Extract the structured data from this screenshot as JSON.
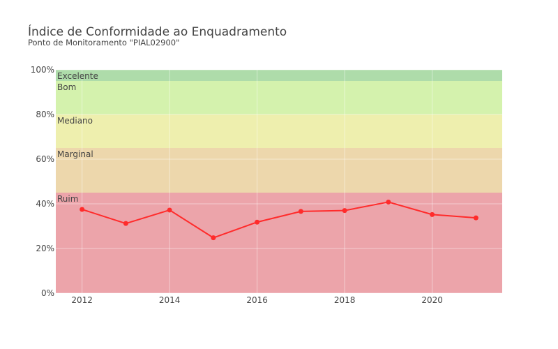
{
  "chart_data": {
    "type": "line",
    "title": "Índice de Conformidade ao Enquadramento",
    "subtitle": "Ponto de Monitoramento \"PIAL02900\"",
    "x": [
      2012,
      2013,
      2014,
      2015,
      2016,
      2017,
      2018,
      2019,
      2020,
      2021
    ],
    "series": [
      {
        "values": [
          37.5,
          31.2,
          37.2,
          24.8,
          31.8,
          36.6,
          37.0,
          40.8,
          35.2,
          33.7
        ],
        "color": "#ff2b2b"
      }
    ],
    "xlim": [
      2011.4,
      2021.6
    ],
    "ylim": [
      0,
      100
    ],
    "x_ticks": [
      2012,
      2014,
      2016,
      2018,
      2020
    ],
    "x_tick_labels": [
      "2012",
      "2014",
      "2016",
      "2018",
      "2020"
    ],
    "y_ticks": [
      0,
      20,
      40,
      60,
      80,
      100
    ],
    "y_tick_labels": [
      "0%",
      "20%",
      "40%",
      "60%",
      "80%",
      "100%"
    ],
    "grid": true,
    "bands": [
      {
        "label": "Ruim",
        "from": 0,
        "to": 45,
        "color": "#eca4aa"
      },
      {
        "label": "Marginal",
        "from": 45,
        "to": 65,
        "color": "#edd7ac"
      },
      {
        "label": "Mediano",
        "from": 65,
        "to": 80,
        "color": "#eeefae"
      },
      {
        "label": "Bom",
        "from": 80,
        "to": 95,
        "color": "#d4f2ad"
      },
      {
        "label": "Excelente",
        "from": 95,
        "to": 100,
        "color": "#aedcaa"
      }
    ]
  }
}
